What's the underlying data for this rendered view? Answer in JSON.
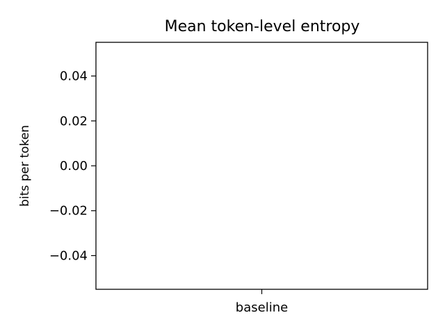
{
  "chart_data": {
    "type": "bar",
    "title": "Mean token-level entropy",
    "xlabel": "",
    "ylabel": "bits per token",
    "categories": [
      "baseline"
    ],
    "values": [
      0
    ],
    "ylim": [
      -0.055,
      0.055
    ],
    "yticks": [
      0.04,
      0.02,
      0.0,
      -0.02,
      -0.04
    ],
    "ytick_labels": [
      "0.04",
      "0.02",
      "0.00",
      "−0.02",
      "−0.04"
    ],
    "grid": false
  }
}
